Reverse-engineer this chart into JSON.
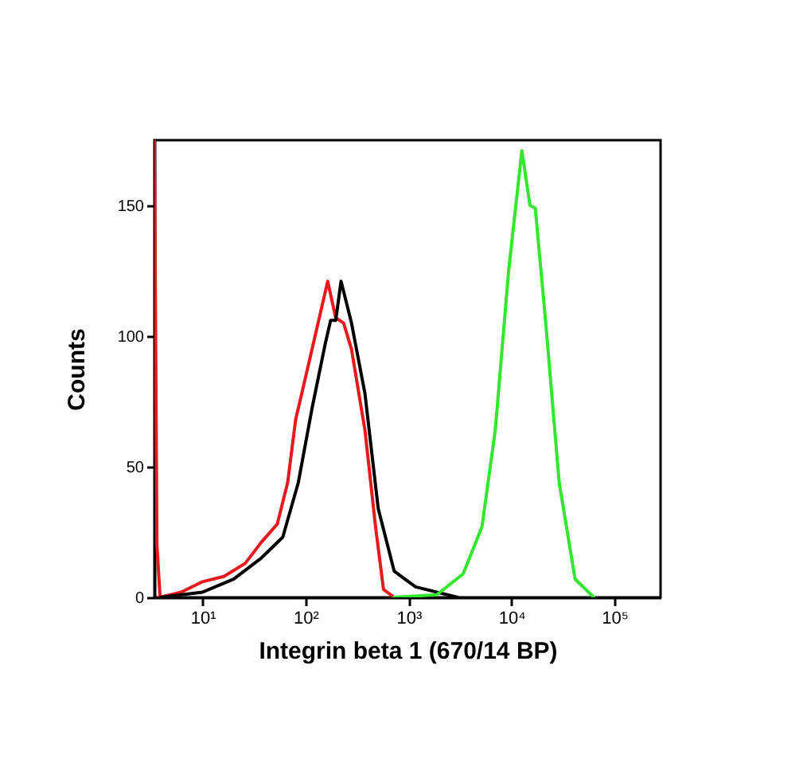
{
  "chart_data": {
    "type": "line",
    "xlabel": "Integrin beta 1 (670/14 BP)",
    "ylabel": "Counts",
    "log": "x",
    "grid": false,
    "legend": false,
    "marker": "none",
    "line_style": "solid",
    "xlim": [
      3.4,
      280000
    ],
    "xticks": [
      {
        "value": 10,
        "label": "10¹"
      },
      {
        "value": 100,
        "label": "10²"
      },
      {
        "value": 1000,
        "label": "10³"
      },
      {
        "value": 10000,
        "label": "10⁴"
      },
      {
        "value": 100000,
        "label": "10⁵"
      }
    ],
    "ylim": [
      0,
      175
    ],
    "yticks": [
      0,
      50,
      100,
      150
    ],
    "series": [
      {
        "color": "#e8191c",
        "x": [
          3.4,
          3.6,
          3.86,
          6.2,
          10,
          16.1,
          25.9,
          37,
          53,
          67,
          80,
          108,
          164,
          196,
          234,
          279,
          377,
          478,
          571,
          725
        ],
        "values": [
          175,
          20,
          0,
          2,
          6,
          8,
          13,
          21,
          28,
          44,
          68,
          90,
          121,
          107,
          105,
          95,
          64,
          27,
          3,
          0
        ]
      },
      {
        "color": "#000000",
        "x": [
          3.9,
          10,
          20,
          37,
          60,
          85,
          115,
          155,
          175,
          196,
          221,
          279,
          377,
          507,
          725,
          1170,
          3000
        ],
        "values": [
          0,
          2,
          7,
          15,
          23,
          44,
          72,
          97,
          106,
          106,
          121,
          105,
          78,
          34,
          10,
          4,
          0
        ]
      },
      {
        "color": "#33e62e",
        "x": [
          725,
          1880,
          3390,
          5160,
          6950,
          9370,
          12600,
          15100,
          17000,
          21500,
          29000,
          41400,
          63000
        ],
        "values": [
          0,
          1,
          9,
          27,
          64,
          125,
          171,
          150,
          149,
          105,
          44,
          7,
          0
        ]
      }
    ]
  }
}
